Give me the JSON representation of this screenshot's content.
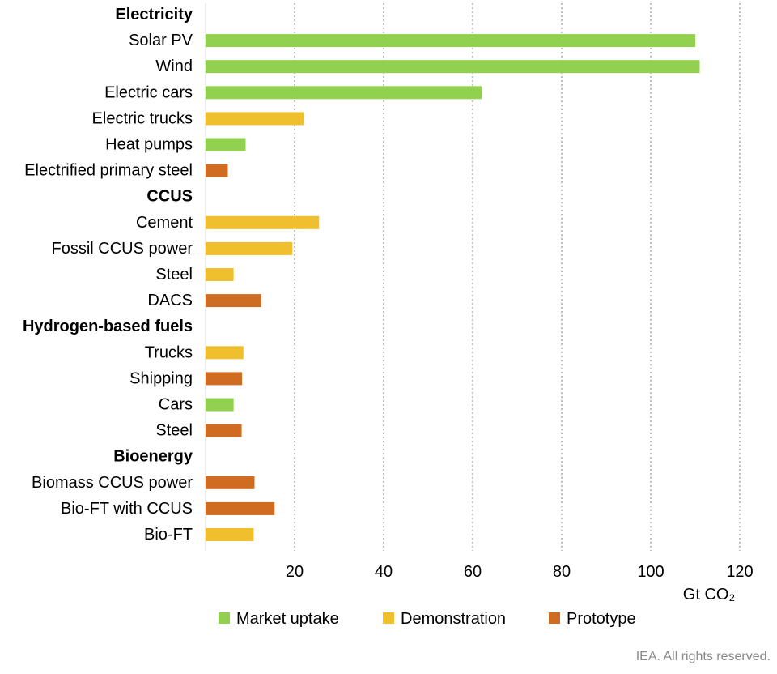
{
  "chart_data": {
    "type": "bar",
    "orientation": "horizontal",
    "unit_label": "Gt CO₂",
    "xlim": [
      0,
      120
    ],
    "xticks": [
      20,
      40,
      60,
      80,
      100,
      120
    ],
    "grid": "vertical dotted",
    "legend_position": "bottom",
    "legend": [
      {
        "key": "market",
        "label": "Market uptake",
        "color": "#92d050"
      },
      {
        "key": "demo",
        "label": "Demonstration",
        "color": "#f0bf2e"
      },
      {
        "key": "proto",
        "label": "Prototype",
        "color": "#d06b22"
      }
    ],
    "groups": [
      {
        "name": "Electricity",
        "items": [
          {
            "label": "Solar PV",
            "value": 110,
            "stage": "market"
          },
          {
            "label": "Wind",
            "value": 111,
            "stage": "market"
          },
          {
            "label": "Electric cars",
            "value": 62,
            "stage": "market"
          },
          {
            "label": "Electric trucks",
            "value": 22,
            "stage": "demo"
          },
          {
            "label": "Heat pumps",
            "value": 9,
            "stage": "market"
          },
          {
            "label": "Electrified primary steel",
            "value": 5,
            "stage": "proto"
          }
        ]
      },
      {
        "name": "CCUS",
        "items": [
          {
            "label": "Cement",
            "value": 25.5,
            "stage": "demo"
          },
          {
            "label": "Fossil CCUS power",
            "value": 19.5,
            "stage": "demo"
          },
          {
            "label": "Steel",
            "value": 6.3,
            "stage": "demo"
          },
          {
            "label": "DACS",
            "value": 12.5,
            "stage": "proto"
          }
        ]
      },
      {
        "name": "Hydrogen-based fuels",
        "items": [
          {
            "label": "Trucks",
            "value": 8.5,
            "stage": "demo"
          },
          {
            "label": "Shipping",
            "value": 8.2,
            "stage": "proto"
          },
          {
            "label": "Cars",
            "value": 6.3,
            "stage": "market"
          },
          {
            "label": "Steel",
            "value": 8.1,
            "stage": "proto"
          }
        ]
      },
      {
        "name": "Bioenergy",
        "items": [
          {
            "label": "Biomass CCUS power",
            "value": 11,
            "stage": "proto"
          },
          {
            "label": "Bio-FT with CCUS",
            "value": 15.5,
            "stage": "proto"
          },
          {
            "label": "Bio-FT",
            "value": 10.8,
            "stage": "demo"
          }
        ]
      }
    ]
  },
  "footer": {
    "credit": "IEA. All rights reserved."
  }
}
